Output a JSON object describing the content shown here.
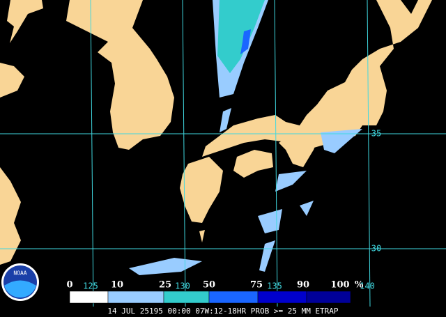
{
  "logo": "NOAA",
  "grid": {
    "latitudes": [
      "35",
      "30"
    ],
    "longitudes": [
      "125",
      "130",
      "135",
      "140"
    ],
    "color": "#40d8e0"
  },
  "legend": {
    "thresholds": [
      0,
      10,
      25,
      50,
      75,
      90,
      100
    ],
    "unit": "%",
    "colors": [
      "#ffffff",
      "#99ccff",
      "#33cccc",
      "#1a66ff",
      "#0000cc",
      "#000099"
    ]
  },
  "footer": "14 JUL 25195 00:00 07W:12-18HR PROB >= 25 MM ETRAP"
}
